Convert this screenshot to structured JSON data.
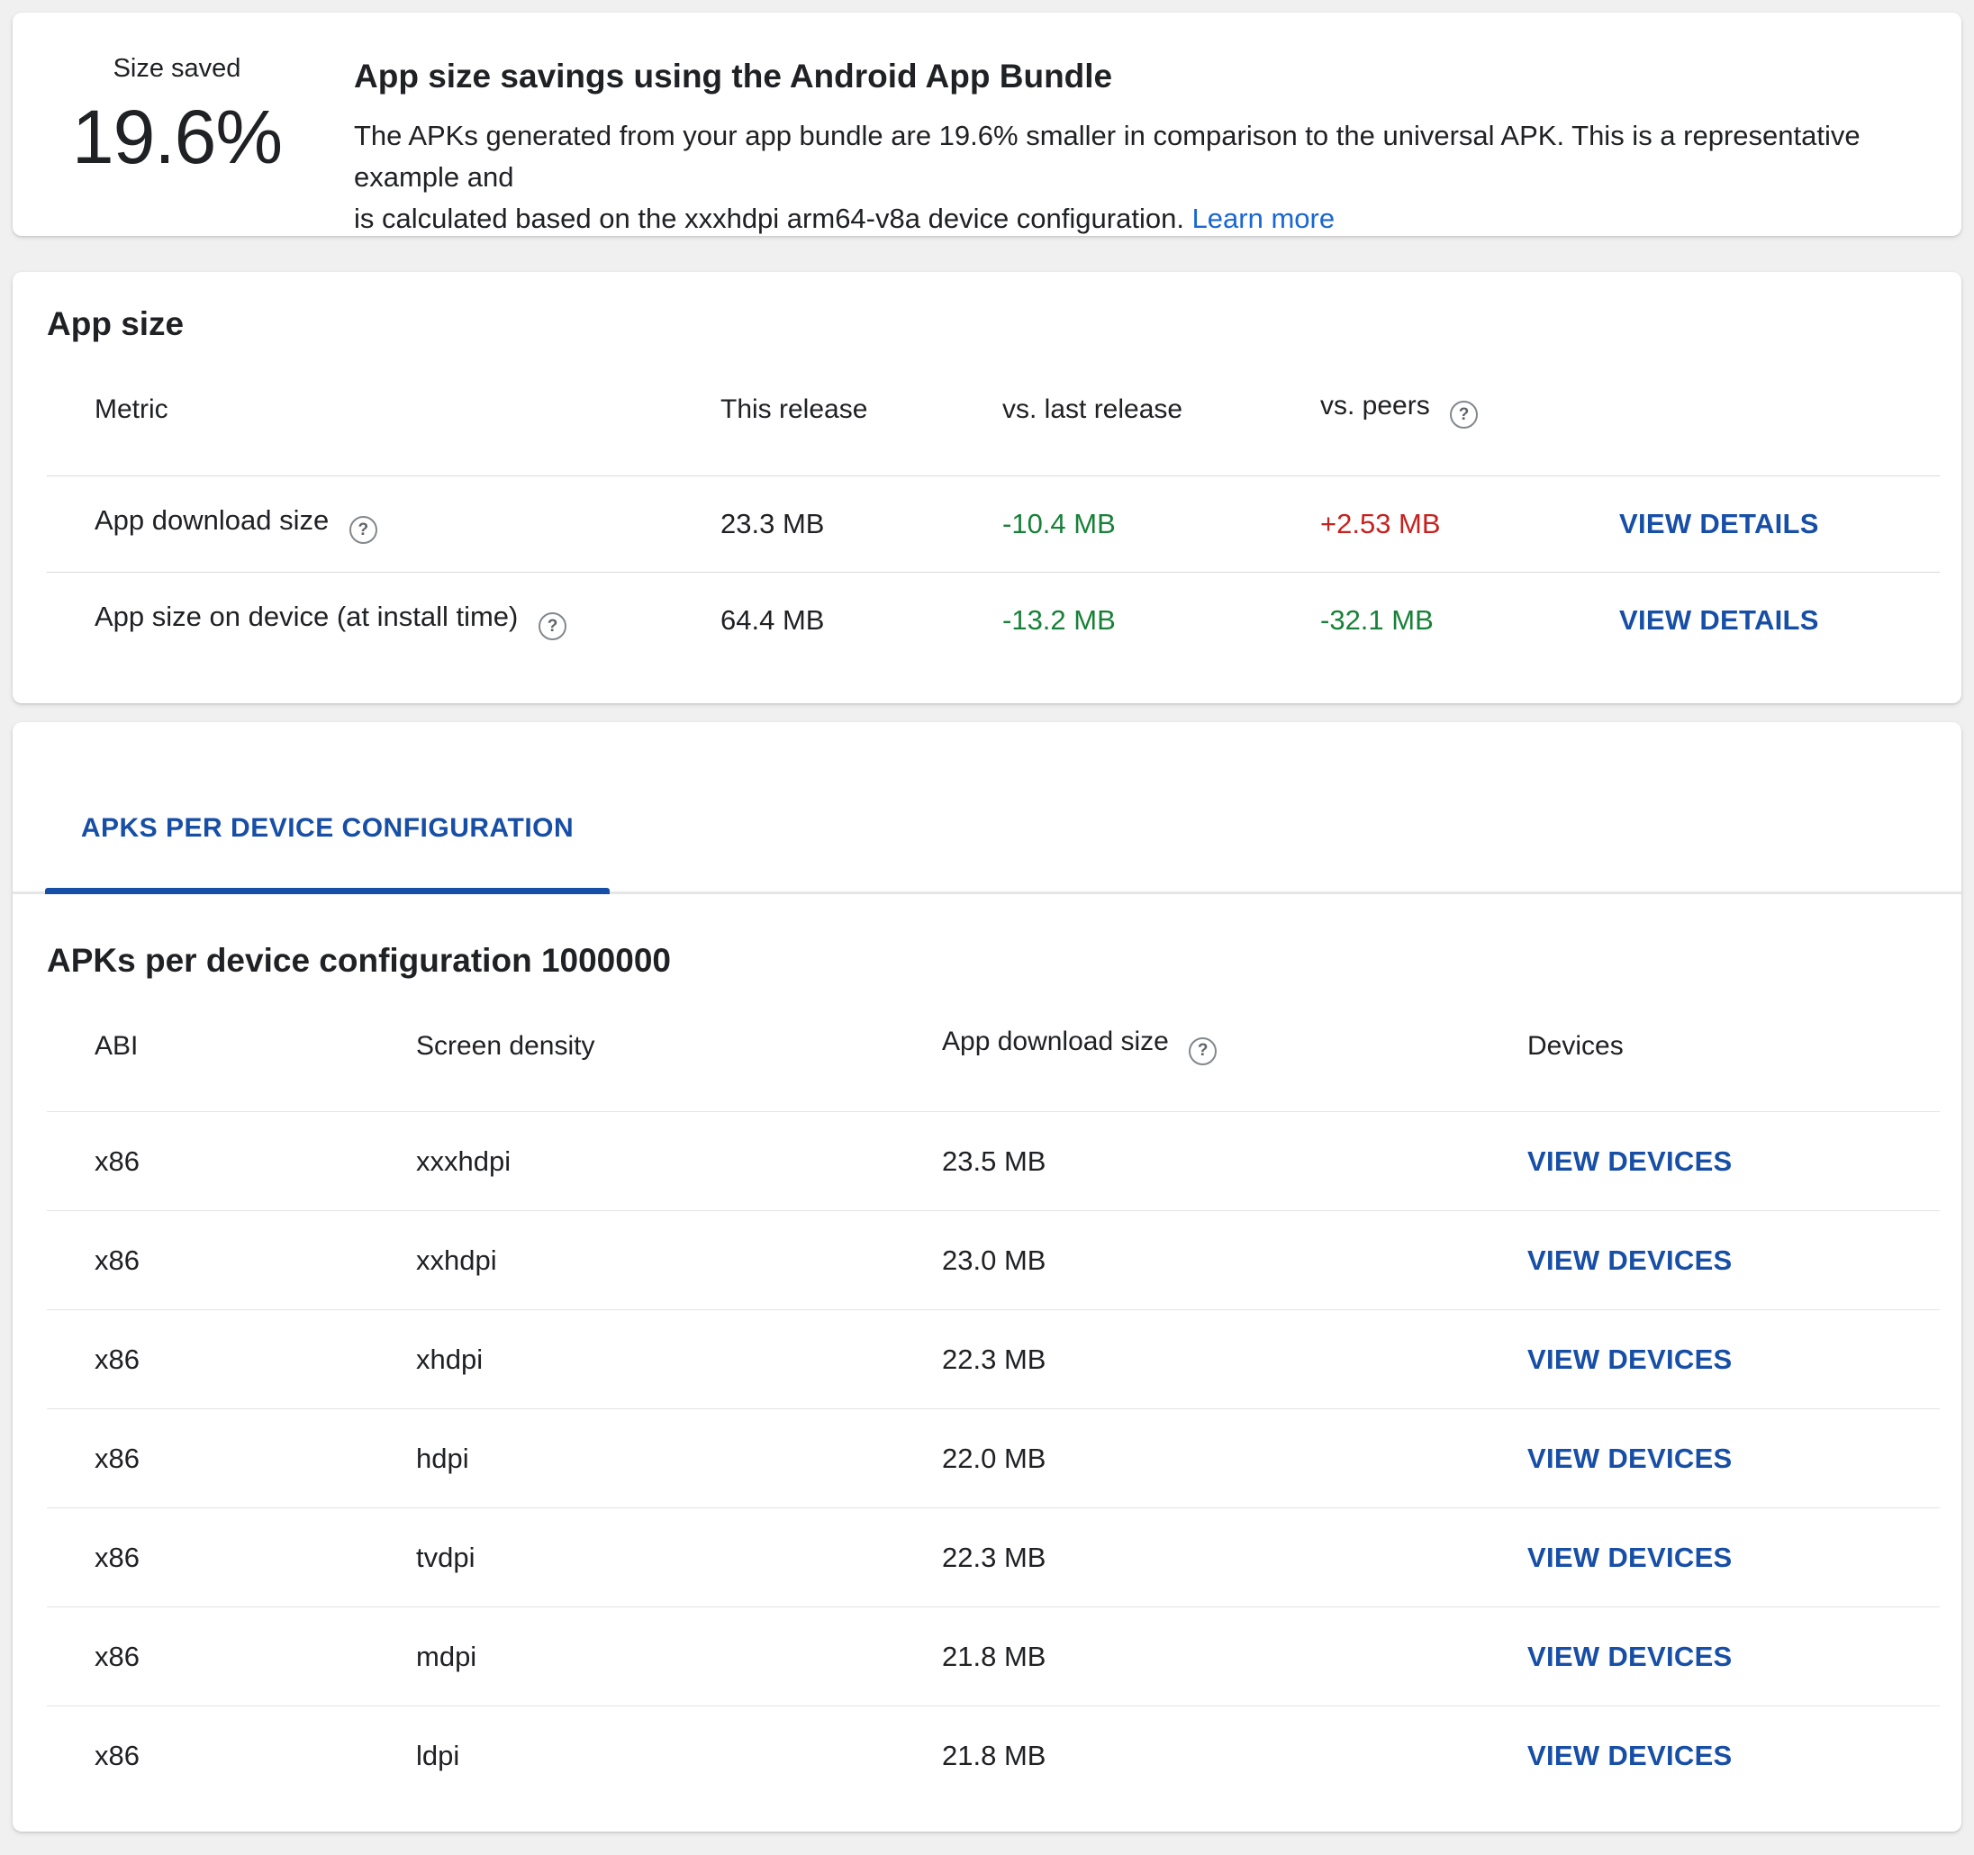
{
  "icons": {
    "help_glyph": "?"
  },
  "colors": {
    "positive_delta": "#188038",
    "negative_delta": "#c5221f",
    "link": "#174ea6",
    "learn_more_link": "#1967d2",
    "tab_active": "#174ea6",
    "page_background": "#f0f0f1",
    "card_background": "#ffffff"
  },
  "savings_card": {
    "label": "Size saved",
    "percent": "19.6%",
    "title": "App size savings using the Android App Bundle",
    "description_line1": "The APKs generated from your app bundle are 19.6% smaller in comparison to the universal APK. This is a representative example and",
    "description_line2": "is calculated based on the xxxhdpi arm64-v8a device configuration.",
    "learn_more_label": "Learn more"
  },
  "app_size_card": {
    "title": "App size",
    "columns": {
      "metric": "Metric",
      "this_release": "This release",
      "vs_last_release": "vs. last release",
      "vs_peers": "vs. peers"
    },
    "rows": [
      {
        "metric": "App download size",
        "this_release": "23.3 MB",
        "vs_last_release": "-10.4 MB",
        "vs_peers": "+2.53 MB",
        "action": "VIEW DETAILS"
      },
      {
        "metric": "App size on device (at install time)",
        "this_release": "64.4 MB",
        "vs_last_release": "-13.2 MB",
        "vs_peers": "-32.1 MB",
        "action": "VIEW DETAILS"
      }
    ]
  },
  "apks_card": {
    "tab_label": "APKS PER DEVICE CONFIGURATION",
    "heading": "APKs per device configuration 1000000",
    "columns": {
      "abi": "ABI",
      "screen_density": "Screen density",
      "app_download_size": "App download size",
      "devices": "Devices"
    },
    "rows": [
      {
        "abi": "x86",
        "density": "xxxhdpi",
        "size": "23.5 MB",
        "action": "VIEW DEVICES"
      },
      {
        "abi": "x86",
        "density": "xxhdpi",
        "size": "23.0 MB",
        "action": "VIEW DEVICES"
      },
      {
        "abi": "x86",
        "density": "xhdpi",
        "size": "22.3 MB",
        "action": "VIEW DEVICES"
      },
      {
        "abi": "x86",
        "density": "hdpi",
        "size": "22.0 MB",
        "action": "VIEW DEVICES"
      },
      {
        "abi": "x86",
        "density": "tvdpi",
        "size": "22.3 MB",
        "action": "VIEW DEVICES"
      },
      {
        "abi": "x86",
        "density": "mdpi",
        "size": "21.8 MB",
        "action": "VIEW DEVICES"
      },
      {
        "abi": "x86",
        "density": "ldpi",
        "size": "21.8 MB",
        "action": "VIEW DEVICES"
      }
    ]
  }
}
